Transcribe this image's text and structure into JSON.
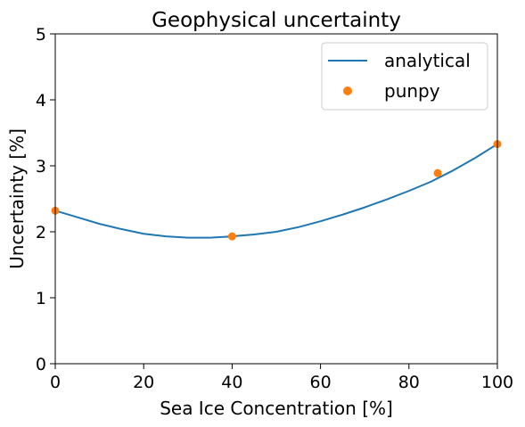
{
  "chart_data": {
    "type": "line",
    "title": "Geophysical uncertainty",
    "xlabel": "Sea Ice Concentration [%]",
    "ylabel": "Uncertainty [%]",
    "xlim": [
      0,
      100
    ],
    "ylim": [
      0,
      5
    ],
    "xticks": [
      "0",
      "20",
      "40",
      "60",
      "80",
      "100"
    ],
    "yticks": [
      "0",
      "1",
      "2",
      "3",
      "4",
      "5"
    ],
    "grid": false,
    "legend_position": "top-right",
    "series": [
      {
        "name": "analytical",
        "kind": "line",
        "color": "#1f77b4",
        "x": [
          0,
          5,
          10,
          15,
          20,
          25,
          30,
          35,
          40,
          45,
          50,
          55,
          60,
          65,
          70,
          75,
          80,
          85,
          90,
          95,
          100
        ],
        "y": [
          2.32,
          2.22,
          2.12,
          2.04,
          1.97,
          1.93,
          1.91,
          1.91,
          1.93,
          1.96,
          2.0,
          2.07,
          2.16,
          2.26,
          2.37,
          2.49,
          2.62,
          2.76,
          2.93,
          3.12,
          3.33
        ]
      },
      {
        "name": "punpy",
        "kind": "scatter",
        "color": "#ff7f0e",
        "x": [
          0,
          40,
          86.5,
          100
        ],
        "y": [
          2.32,
          1.93,
          2.89,
          3.33
        ]
      }
    ]
  }
}
